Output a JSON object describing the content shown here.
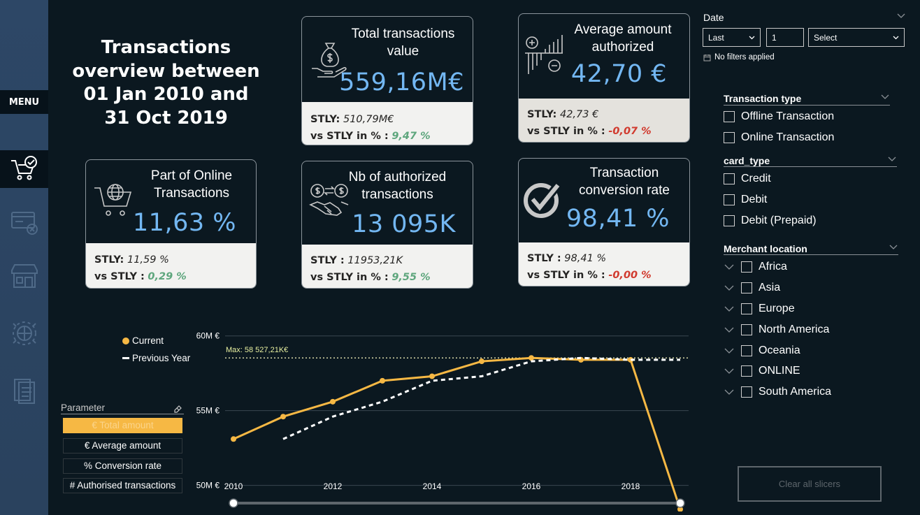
{
  "nav": {
    "menu_label": "MENU",
    "items": [
      {
        "icon": "shopping-cart-check-icon",
        "active": true
      },
      {
        "icon": "credit-card-decline-icon",
        "active": false
      },
      {
        "icon": "storefront-icon",
        "active": false
      },
      {
        "icon": "global-finance-icon",
        "active": false
      },
      {
        "icon": "documents-icon",
        "active": false
      }
    ]
  },
  "title": {
    "line1": "Transactions",
    "line2": "overview between",
    "line3": "01 Jan 2010 and",
    "line4": "31 Oct 2019"
  },
  "kpis": {
    "total_value": {
      "label_line1": "Total transactions",
      "label_line2": "value",
      "value": "559,16M€",
      "stly_label": "STLY:",
      "stly_value": "510,79M€",
      "vs_label": "vs STLY in % :",
      "vs_value": "9,47 %",
      "icon": "money-bag-hand-icon"
    },
    "avg_amount": {
      "label_line1": "Average amount",
      "label_line2": "authorized",
      "value": "42,70 €",
      "stly_label": "STLY:",
      "stly_value": "42,73 €",
      "vs_label": "vs STLY in % :",
      "vs_value": "-0,07 %",
      "icon": "plus-minus-chart-icon"
    },
    "online_part": {
      "label_line1": "Part of Online",
      "label_line2": "Transactions",
      "value": "11,63 %",
      "stly_label": "STLY:",
      "stly_value": "11,59 %",
      "vs_label": "vs STLY :",
      "vs_value": "0,29 %",
      "icon": "online-cart-globe-icon"
    },
    "nb_authorized": {
      "label_line1": "Nb of authorized",
      "label_line2": "transactions",
      "value": "13 095K",
      "stly_label": "STLY :",
      "stly_value": "11953,21K",
      "vs_label": "vs STLY in % :",
      "vs_value": "9,55 %",
      "icon": "handshake-exchange-icon"
    },
    "conversion_rate": {
      "label_line1": "Transaction",
      "label_line2": "conversion rate",
      "value": "98,41 %",
      "stly_label": "STLY :",
      "stly_value": "98,41 %",
      "vs_label": "vs STLY in % :",
      "vs_value": "-0,00 %",
      "icon": "checkmark-circle-icon"
    }
  },
  "date_slicer": {
    "title": "Date",
    "mode": "Last",
    "count": "1",
    "unit": "Select",
    "status": "No filters applied"
  },
  "transaction_type": {
    "title": "Transaction type",
    "options": [
      "Offline Transaction",
      "Online Transaction"
    ]
  },
  "card_type": {
    "title": "card_type",
    "options": [
      "Credit",
      "Debit",
      "Debit (Prepaid)"
    ]
  },
  "merchant_location": {
    "title": "Merchant location",
    "options": [
      "Africa",
      "Asia",
      "Europe",
      "North America",
      "Oceania",
      "ONLINE",
      "South America"
    ]
  },
  "clear_button": "Clear all slicers",
  "legend": {
    "current": "Current",
    "previous": "Previous Year"
  },
  "parameter": {
    "title": "Parameter",
    "options": [
      "€ Total amount",
      "€ Average amount",
      "% Conversion rate",
      "# Authorised transactions"
    ],
    "selected_index": 0
  },
  "colors": {
    "accent_blue": "#73b7f2",
    "current_line": "#f6b844",
    "positive": "#5ea67d",
    "negative": "#d13b2f"
  },
  "chart_data": {
    "type": "line",
    "x": [
      2010,
      2011,
      2012,
      2013,
      2014,
      2015,
      2016,
      2017,
      2018,
      2019
    ],
    "xticks": [
      "2010",
      "2012",
      "2014",
      "2016",
      "2018"
    ],
    "yticks": [
      "60M €",
      "55M €",
      "50M €"
    ],
    "ylim": [
      49000000,
      60500000
    ],
    "series": [
      {
        "name": "Current",
        "style": "solid-markers",
        "values": [
          53100000,
          54600000,
          55600000,
          57000000,
          57300000,
          58300000,
          58527210,
          58400000,
          58400000,
          48400000
        ]
      },
      {
        "name": "Previous Year",
        "style": "dashed",
        "values": [
          null,
          53100000,
          54600000,
          55600000,
          57000000,
          57300000,
          58300000,
          58527210,
          58400000,
          58400000
        ]
      }
    ],
    "max_line_label": "Max: 58 527,21K€",
    "max_value": 58527210,
    "range_slider": [
      "2010",
      "2019"
    ]
  }
}
